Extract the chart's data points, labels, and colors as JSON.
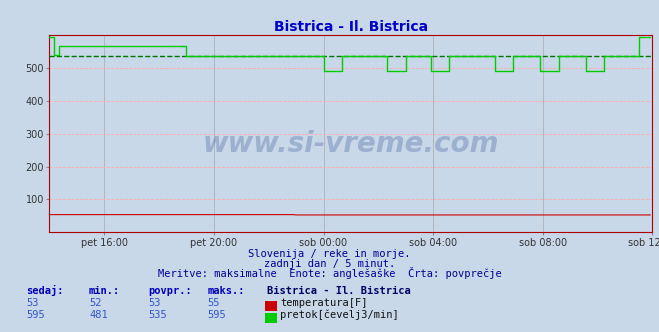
{
  "title": "Bistrica - Il. Bistrica",
  "title_color": "#0000cc",
  "bg_color": "#c8d8e8",
  "grid_color_v": "#aaaaaa",
  "grid_color_h": "#ffaaaa",
  "ylim": [
    0,
    600
  ],
  "yticks": [
    100,
    200,
    300,
    400,
    500
  ],
  "xtick_labels": [
    "pet 16:00",
    "pet 20:00",
    "sob 00:00",
    "sob 04:00",
    "sob 08:00",
    "sob 12:00"
  ],
  "temp_color": "#cc0000",
  "flow_color": "#00cc00",
  "avg_flow_color": "#007700",
  "avg_flow": 535,
  "watermark_text": "www.si-vreme.com",
  "watermark_color": "#1a3a8a",
  "watermark_alpha": 0.25,
  "sub_text1": "Slovenija / reke in morje.",
  "sub_text2": "zadnji dan / 5 minut.",
  "sub_text3": "Meritve: maksimalne  Enote: anglešaške  Črta: povprečje",
  "sub_color": "#000099",
  "legend_title": "Bistrica - Il. Bistrica",
  "legend_title_color": "#000066",
  "label_sedaj": "sedaj:",
  "label_min": "min.:",
  "label_povpr": "povpr.:",
  "label_maks": "maks.:",
  "temp_sedaj": 53,
  "temp_min": 52,
  "temp_povpr": 53,
  "temp_maks": 55,
  "flow_sedaj": 595,
  "flow_min": 481,
  "flow_povpr": 535,
  "flow_maks": 595,
  "temp_label": "temperatura[F]",
  "flow_label": "pretok[čevelj3/min]"
}
